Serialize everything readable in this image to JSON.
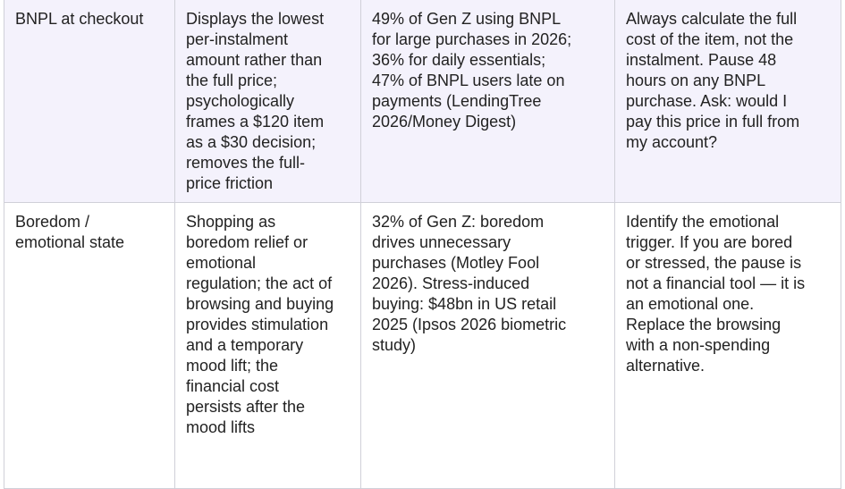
{
  "table": {
    "rows": [
      [
        [
          "BNPL at checkout"
        ],
        [
          "Displays the lowest",
          "per-instalment",
          "amount rather than",
          "the full price;",
          "psychologically",
          "frames a $120 item",
          "as a $30 decision;",
          "removes the full-",
          "price friction"
        ],
        [
          "49% of Gen Z using BNPL",
          "for large purchases in 2026;",
          "36% for daily essentials;",
          "47% of BNPL users late on",
          "payments (LendingTree",
          "2026/Money Digest)"
        ],
        [
          "Always calculate the full",
          "cost of the item, not the",
          "instalment. Pause 48",
          "hours on any BNPL",
          "purchase. Ask: would I",
          "pay this price in full from",
          "my account?"
        ]
      ],
      [
        [
          "Boredom /",
          "emotional state"
        ],
        [
          "Shopping as",
          "boredom relief or",
          "emotional",
          "regulation; the act of",
          "browsing and buying",
          "provides stimulation",
          "and a temporary",
          "mood lift; the",
          "financial cost",
          "persists after the",
          "mood lifts"
        ],
        [
          "32% of Gen Z: boredom",
          "drives unnecessary",
          "purchases (Motley Fool",
          "2026). Stress-induced",
          "buying: $48bn in US retail",
          "2025 (Ipsos 2026 biometric",
          "study)"
        ],
        [
          "Identify the emotional",
          "trigger. If you are bored",
          "or stressed, the pause is",
          "not a financial tool — it is",
          "an emotional one.",
          "Replace the browsing",
          "with a non-spending",
          "alternative."
        ]
      ]
    ]
  }
}
